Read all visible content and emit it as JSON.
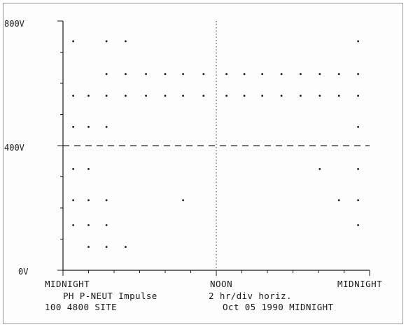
{
  "chart_data": {
    "type": "scatter",
    "title": "",
    "y_ticks": [
      "800V",
      "400V",
      "0V"
    ],
    "x_ticks": [
      "MIDNIGHT",
      "NOON",
      "MIDNIGHT"
    ],
    "ylim": [
      0,
      800
    ],
    "xlim": [
      0,
      24
    ],
    "grid": false,
    "noon_marker_hour": 12,
    "threshold_line_value": 400,
    "caption": {
      "line1_left": "PH P-NEUT Impulse",
      "line1_right": "2 hr/div horiz.",
      "line2_left": "100 4800 SITE",
      "line2_right": "Oct 05 1990 MIDNIGHT"
    },
    "points": [
      {
        "x": 0.8,
        "y": 735
      },
      {
        "x": 0.8,
        "y": 560
      },
      {
        "x": 0.8,
        "y": 460
      },
      {
        "x": 0.8,
        "y": 325
      },
      {
        "x": 0.8,
        "y": 225
      },
      {
        "x": 0.8,
        "y": 145
      },
      {
        "x": 2.0,
        "y": 560
      },
      {
        "x": 2.0,
        "y": 460
      },
      {
        "x": 2.0,
        "y": 325
      },
      {
        "x": 2.0,
        "y": 225
      },
      {
        "x": 2.0,
        "y": 145
      },
      {
        "x": 2.0,
        "y": 75
      },
      {
        "x": 3.4,
        "y": 735
      },
      {
        "x": 3.4,
        "y": 630
      },
      {
        "x": 3.4,
        "y": 560
      },
      {
        "x": 3.4,
        "y": 460
      },
      {
        "x": 3.4,
        "y": 225
      },
      {
        "x": 3.4,
        "y": 145
      },
      {
        "x": 3.4,
        "y": 75
      },
      {
        "x": 4.9,
        "y": 735
      },
      {
        "x": 4.9,
        "y": 630
      },
      {
        "x": 4.9,
        "y": 560
      },
      {
        "x": 4.9,
        "y": 75
      },
      {
        "x": 6.5,
        "y": 630
      },
      {
        "x": 6.5,
        "y": 560
      },
      {
        "x": 8.0,
        "y": 630
      },
      {
        "x": 8.0,
        "y": 560
      },
      {
        "x": 9.4,
        "y": 630
      },
      {
        "x": 9.4,
        "y": 560
      },
      {
        "x": 9.4,
        "y": 225
      },
      {
        "x": 11.0,
        "y": 630
      },
      {
        "x": 11.0,
        "y": 560
      },
      {
        "x": 12.8,
        "y": 630
      },
      {
        "x": 12.8,
        "y": 560
      },
      {
        "x": 14.2,
        "y": 630
      },
      {
        "x": 14.2,
        "y": 560
      },
      {
        "x": 15.6,
        "y": 630
      },
      {
        "x": 15.6,
        "y": 560
      },
      {
        "x": 17.1,
        "y": 630
      },
      {
        "x": 17.1,
        "y": 560
      },
      {
        "x": 18.6,
        "y": 630
      },
      {
        "x": 18.6,
        "y": 560
      },
      {
        "x": 20.1,
        "y": 630
      },
      {
        "x": 20.1,
        "y": 560
      },
      {
        "x": 20.1,
        "y": 325
      },
      {
        "x": 21.6,
        "y": 630
      },
      {
        "x": 21.6,
        "y": 560
      },
      {
        "x": 21.6,
        "y": 225
      },
      {
        "x": 23.1,
        "y": 735
      },
      {
        "x": 23.1,
        "y": 630
      },
      {
        "x": 23.1,
        "y": 560
      },
      {
        "x": 23.1,
        "y": 460
      },
      {
        "x": 23.1,
        "y": 325
      },
      {
        "x": 23.1,
        "y": 225
      },
      {
        "x": 23.1,
        "y": 145
      }
    ]
  }
}
